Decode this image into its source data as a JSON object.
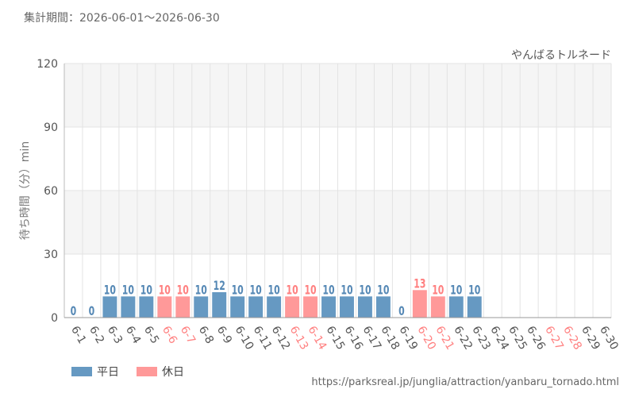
{
  "header": {
    "period_label": "集計期間：2026-06-01～2026-06-30"
  },
  "footer": {
    "source_url": "https://parksreal.jp/junglia/attraction/yanbaru_tornado.html"
  },
  "chart_data": {
    "type": "bar",
    "title": "やんばるトルネード",
    "ylabel": "待ち時間（分）min",
    "xlabel": "",
    "ylim": [
      0,
      120
    ],
    "yticks": [
      0,
      30,
      60,
      90,
      120
    ],
    "grid": true,
    "legend_position": "bottom-left",
    "categories": [
      "6-1",
      "6-2",
      "6-3",
      "6-4",
      "6-5",
      "6-6",
      "6-7",
      "6-8",
      "6-9",
      "6-10",
      "6-11",
      "6-12",
      "6-13",
      "6-14",
      "6-15",
      "6-16",
      "6-17",
      "6-18",
      "6-19",
      "6-20",
      "6-21",
      "6-22",
      "6-23",
      "6-24",
      "6-25",
      "6-26",
      "6-27",
      "6-28",
      "6-29",
      "6-30"
    ],
    "values": [
      0,
      0,
      10,
      10,
      10,
      10,
      10,
      10,
      12,
      10,
      10,
      10,
      10,
      10,
      10,
      10,
      10,
      10,
      0,
      13,
      10,
      10,
      10,
      null,
      null,
      null,
      null,
      null,
      null,
      null
    ],
    "holiday": [
      false,
      false,
      false,
      false,
      false,
      true,
      true,
      false,
      false,
      false,
      false,
      false,
      true,
      true,
      false,
      false,
      false,
      false,
      false,
      true,
      true,
      false,
      false,
      false,
      false,
      false,
      true,
      true,
      false,
      false
    ],
    "series": [
      {
        "name": "平日",
        "color": "#6699c2"
      },
      {
        "name": "休日",
        "color": "#ff9999"
      }
    ],
    "colors": {
      "weekday_label": "#555555",
      "holiday_label": "#ff8080",
      "weekday_value": "#5588b5",
      "holiday_value": "#ff8080"
    }
  }
}
